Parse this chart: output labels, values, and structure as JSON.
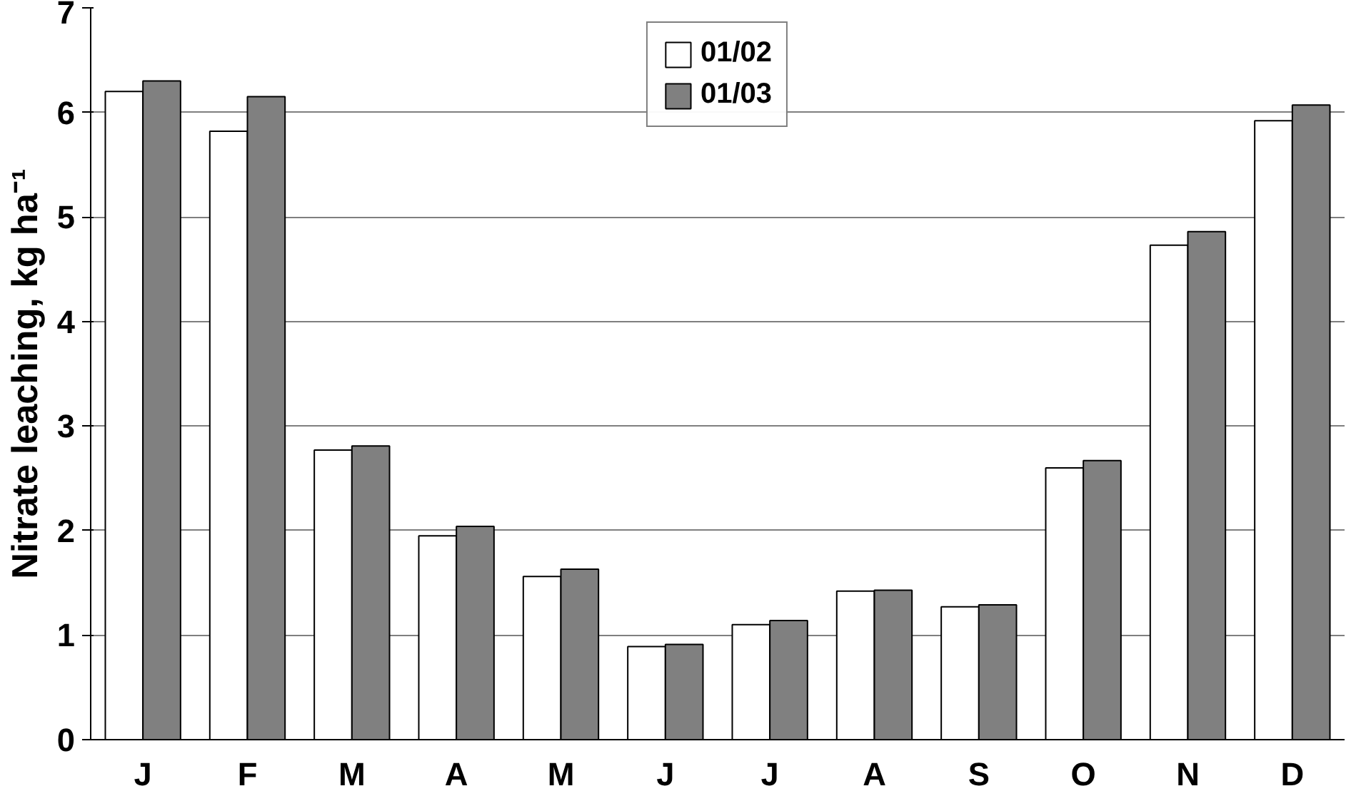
{
  "chart_data": {
    "type": "bar",
    "ylabel": "Nitrate leaching, kg ha⁻¹",
    "categories": [
      "J",
      "F",
      "M",
      "A",
      "M",
      "J",
      "J",
      "A",
      "S",
      "O",
      "N",
      "D"
    ],
    "series": [
      {
        "name": "01/02",
        "color": "#ffffff",
        "values": [
          6.2,
          5.82,
          2.77,
          1.95,
          1.56,
          0.89,
          1.1,
          1.42,
          1.27,
          2.6,
          4.73,
          5.92
        ]
      },
      {
        "name": "01/03",
        "color": "#808080",
        "values": [
          6.3,
          6.15,
          2.81,
          2.04,
          1.63,
          0.91,
          1.14,
          1.43,
          1.29,
          2.67,
          4.86,
          6.07
        ]
      }
    ],
    "ylim": [
      0,
      7
    ],
    "yticks": [
      0,
      1,
      2,
      3,
      4,
      5,
      6,
      7
    ],
    "grid": "y",
    "legend": "top"
  }
}
